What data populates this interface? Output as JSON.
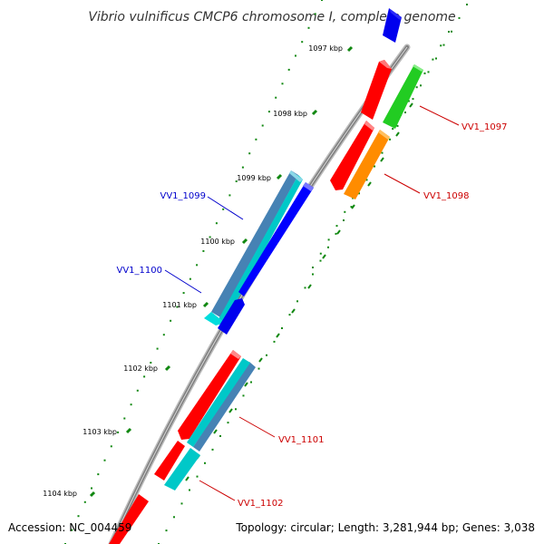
{
  "title": "Vibrio vulnificus CMCP6 chromosome I, complete genome",
  "colors": {
    "backbone": "#8a8a8a",
    "dots": "#118811",
    "leader_forward": "#cc0000",
    "leader_reverse": "#0000cc",
    "gene_red": "#ff0000",
    "gene_green": "#33cc33",
    "gene_orange": "#ff8c00",
    "gene_blue": "#0000ff",
    "gene_cyan": "#00cccc",
    "gene_steel": "#4682b4"
  },
  "ticks": [
    {
      "label": "1097 kbp"
    },
    {
      "label": "1098 kbp"
    },
    {
      "label": "1099 kbp"
    },
    {
      "label": "1100 kbp"
    },
    {
      "label": "1101 kbp"
    },
    {
      "label": "1102 kbp"
    },
    {
      "label": "1103 kbp"
    },
    {
      "label": "1104 kbp"
    }
  ],
  "gene_labels": {
    "vv1_1097": "VV1_1097",
    "vv1_1098": "VV1_1098",
    "vv1_1099": "VV1_1099",
    "vv1_1100": "VV1_1100",
    "vv1_1101": "VV1_1101",
    "vv1_1102": "VV1_1102"
  },
  "footer": {
    "accession": "Accession: NC_004459",
    "summary": "Topology: circular; Length: 3,281,944 bp; Genes: 3,038"
  }
}
